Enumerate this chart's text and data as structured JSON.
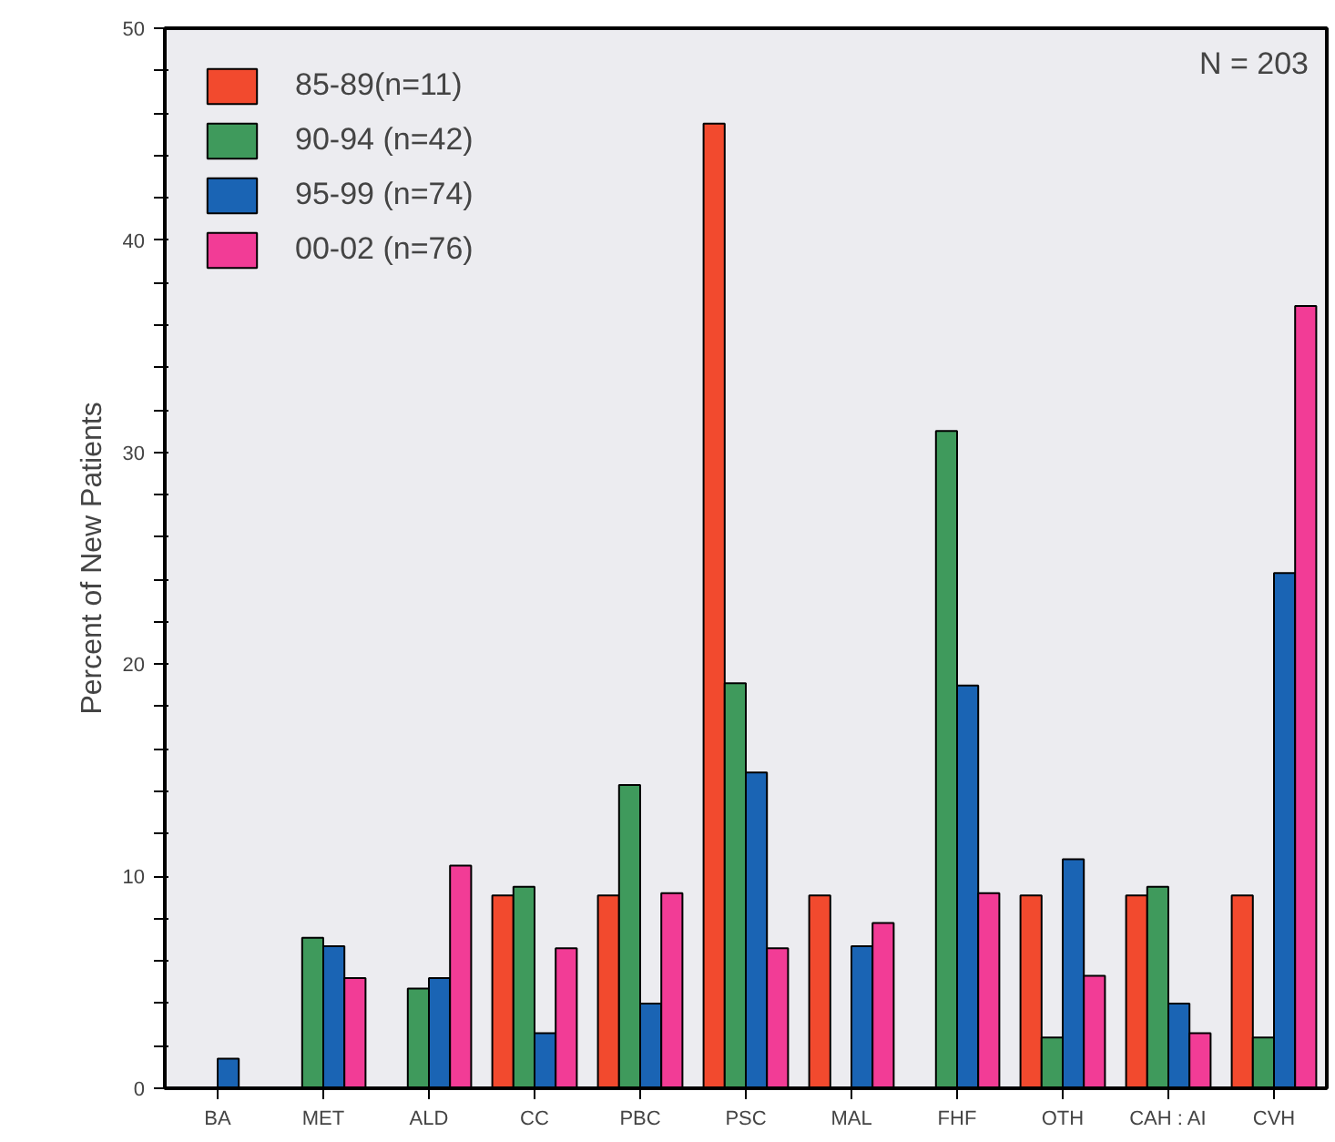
{
  "chart_data": {
    "type": "bar",
    "ylabel": "Percent of New Patients",
    "annotations": [
      "N = 203"
    ],
    "categories": [
      "BA",
      "MET",
      "ALD",
      "CC",
      "PBC",
      "PSC",
      "MAL",
      "FHF",
      "OTH",
      "CAH : AI",
      "CVH"
    ],
    "series": [
      {
        "name": "85-89(n=11)",
        "color": "#f24a2e",
        "values": [
          null,
          null,
          null,
          9.1,
          9.1,
          45.5,
          9.1,
          null,
          9.1,
          9.1,
          9.1
        ]
      },
      {
        "name": "90-94 (n=42)",
        "color": "#3f9a5c",
        "values": [
          null,
          7.1,
          4.7,
          9.5,
          14.3,
          19.1,
          null,
          31.0,
          2.4,
          9.5,
          2.4
        ]
      },
      {
        "name": "95-99 (n=74)",
        "color": "#1a64b4",
        "values": [
          1.4,
          6.7,
          5.2,
          2.6,
          4.0,
          14.9,
          6.7,
          19.0,
          10.8,
          4.0,
          24.3
        ]
      },
      {
        "name": "00-02 (n=76)",
        "color": "#f23c96",
        "values": [
          null,
          5.2,
          10.5,
          6.6,
          9.2,
          6.6,
          7.8,
          9.2,
          5.3,
          2.6,
          36.9
        ]
      }
    ],
    "ylim": [
      0,
      50
    ],
    "yticks": [
      0,
      {
        "value": 2,
        "label": null
      },
      {
        "value": 4,
        "label": null
      },
      {
        "value": 6,
        "label": null
      },
      {
        "value": 8,
        "label": null
      },
      10,
      {
        "value": 12,
        "label": null
      },
      {
        "value": 14,
        "label": null
      },
      {
        "value": 16,
        "label": null
      },
      {
        "value": 18,
        "label": null
      },
      20,
      {
        "value": 22,
        "label": null
      },
      {
        "value": 24,
        "label": null
      },
      {
        "value": 26,
        "label": null
      },
      {
        "value": 28,
        "label": null
      },
      30,
      {
        "value": 32,
        "label": null
      },
      {
        "value": 34,
        "label": null
      },
      {
        "value": 36,
        "label": null
      },
      {
        "value": 38,
        "label": null
      },
      40,
      {
        "value": 42,
        "label": null
      },
      {
        "value": 44,
        "label": null
      },
      {
        "value": 46,
        "label": null
      },
      {
        "value": 48,
        "label": null
      },
      50
    ],
    "grid": false,
    "legend": "top left"
  }
}
